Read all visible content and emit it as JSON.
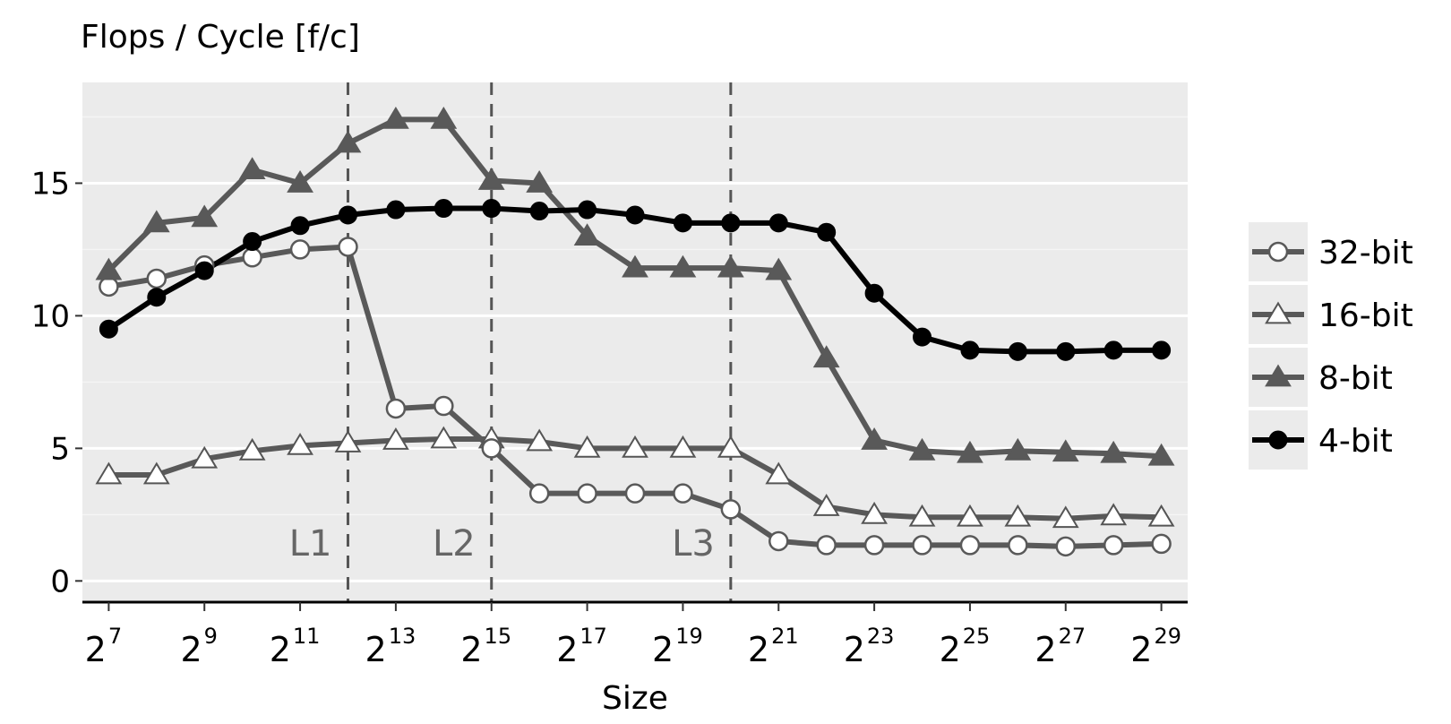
{
  "chart_data": {
    "type": "line",
    "title": "",
    "ylabel": "Flops / Cycle [f/c]",
    "xlabel": "Size",
    "x_exponents": [
      7,
      8,
      9,
      10,
      11,
      12,
      13,
      14,
      15,
      16,
      17,
      18,
      19,
      20,
      21,
      22,
      23,
      24,
      25,
      26,
      27,
      28,
      29
    ],
    "x_tick_exponents": [
      7,
      9,
      11,
      13,
      15,
      17,
      19,
      21,
      23,
      25,
      27,
      29
    ],
    "x_tick_base": "2",
    "x_scale": "log2",
    "ylim": [
      -0.8,
      18.8
    ],
    "y_ticks": [
      "0",
      "5",
      "10",
      "15"
    ],
    "grid": true,
    "legend_position": "right",
    "annotations": [
      {
        "label": "L1",
        "x_exponent": 12
      },
      {
        "label": "L2",
        "x_exponent": 15
      },
      {
        "label": "L3",
        "x_exponent": 20
      }
    ],
    "series": [
      {
        "name": "32-bit",
        "marker": "open-circle",
        "color": "#595959",
        "values": [
          11.1,
          11.4,
          11.9,
          12.2,
          12.5,
          12.6,
          6.5,
          6.6,
          5.0,
          3.3,
          3.3,
          3.3,
          3.3,
          2.7,
          1.5,
          1.35,
          1.35,
          1.35,
          1.35,
          1.35,
          1.3,
          1.35,
          1.4
        ]
      },
      {
        "name": "16-bit",
        "marker": "open-triangle",
        "color": "#595959",
        "values": [
          4.0,
          4.0,
          4.6,
          4.9,
          5.1,
          5.2,
          5.3,
          5.35,
          5.35,
          5.25,
          5.0,
          5.0,
          5.0,
          5.0,
          4.0,
          2.8,
          2.5,
          2.4,
          2.4,
          2.4,
          2.35,
          2.45,
          2.4
        ]
      },
      {
        "name": "8-bit",
        "marker": "filled-triangle",
        "color": "#595959",
        "values": [
          11.7,
          13.5,
          13.7,
          15.5,
          15.0,
          16.5,
          17.4,
          17.4,
          15.1,
          15.0,
          13.0,
          11.8,
          11.8,
          11.8,
          11.7,
          8.4,
          5.3,
          4.9,
          4.8,
          4.9,
          4.85,
          4.8,
          4.7
        ]
      },
      {
        "name": "4-bit",
        "marker": "filled-circle",
        "color": "#000000",
        "values": [
          9.5,
          10.7,
          11.7,
          12.8,
          13.4,
          13.8,
          14.0,
          14.05,
          14.05,
          13.95,
          14.0,
          13.8,
          13.5,
          13.5,
          13.5,
          13.15,
          10.85,
          9.2,
          8.7,
          8.65,
          8.65,
          8.7,
          8.7
        ]
      }
    ]
  }
}
